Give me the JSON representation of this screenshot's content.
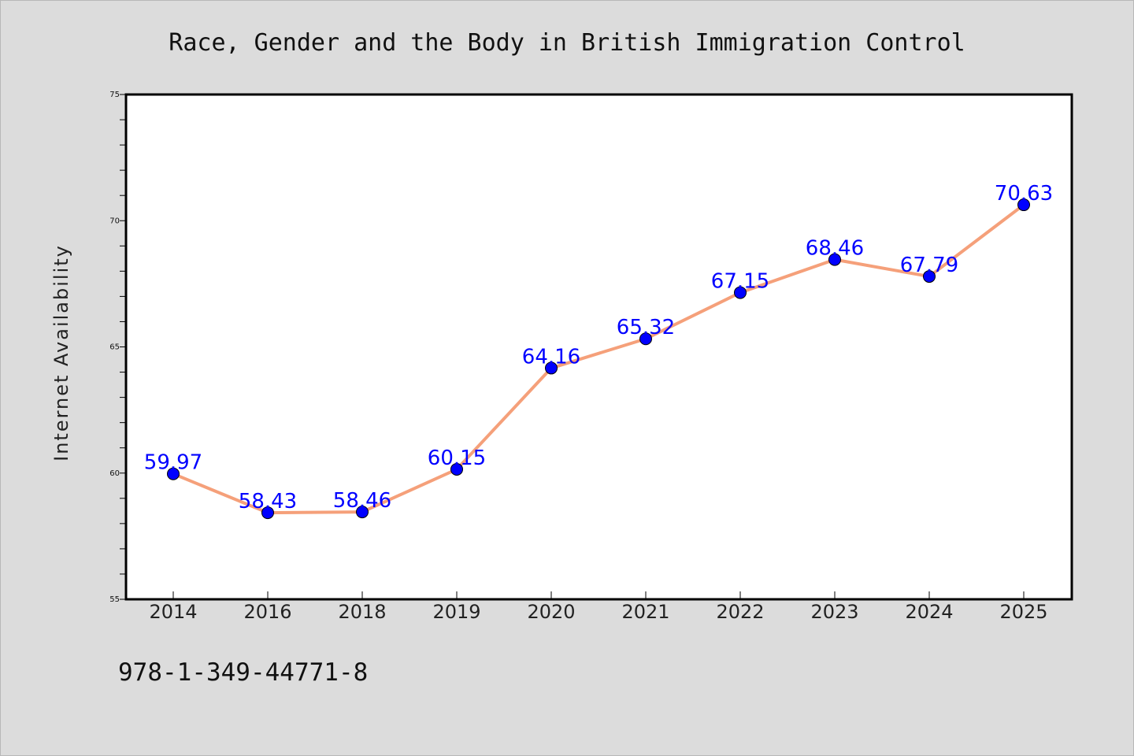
{
  "chart_data": {
    "type": "line",
    "title": "Race, Gender and the Body in British Immigration Control",
    "xlabel": "",
    "ylabel": "Internet Availability",
    "categories": [
      "2014",
      "2016",
      "2018",
      "2019",
      "2020",
      "2021",
      "2022",
      "2023",
      "2024",
      "2025"
    ],
    "series": [
      {
        "values": [
          59.97,
          58.43,
          58.46,
          60.15,
          64.16,
          65.32,
          67.15,
          68.46,
          67.79,
          70.63
        ],
        "labels": [
          "59.97",
          "58.43",
          "58.46",
          "60.15",
          "64.16",
          "65.32",
          "67.15",
          "68.46",
          "67.79",
          "70.63"
        ],
        "line_color": "#f5a07a",
        "marker_color": "#0000ff"
      }
    ],
    "ylim": [
      55,
      75
    ],
    "yticks": [
      "55",
      "60",
      "65",
      "70",
      "75"
    ],
    "grid": false,
    "legend": "none",
    "footnote": "978-1-349-44771-8"
  }
}
